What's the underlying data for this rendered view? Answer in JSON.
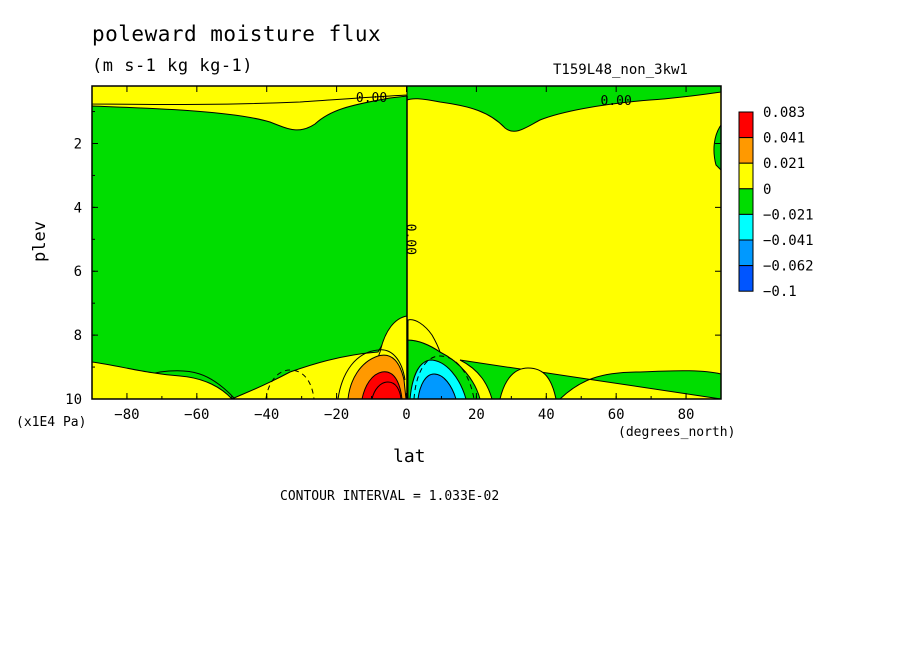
{
  "chart_data": {
    "type": "heatmap",
    "title": "poleward moisture flux",
    "units": "(m s-1 kg kg-1)",
    "run_name": "T159L48_non_3kw1",
    "xlabel": "lat",
    "x_units": "(degrees_north)",
    "ylabel": "plev",
    "y_units": "(x1E4 Pa)",
    "xlim": [
      -90,
      90
    ],
    "ylim": [
      10,
      0.2
    ],
    "x_ticks": [
      -80,
      -60,
      -40,
      -20,
      0,
      20,
      40,
      60,
      80
    ],
    "y_ticks": [
      2,
      4,
      6,
      8,
      10
    ],
    "x_tick_labels": [
      "−80",
      "−60",
      "−40",
      "−20",
      "0",
      "20",
      "40",
      "60",
      "80"
    ],
    "y_tick_labels": [
      "2",
      "4",
      "6",
      "8",
      "10"
    ],
    "contour_interval_text": "CONTOUR INTERVAL = 1.033E-02",
    "contour_labels": [
      {
        "text": "0.00",
        "lat": -10,
        "plev": 0.7
      },
      {
        "text": "0.00",
        "lat": 60,
        "plev": 0.8
      },
      {
        "text": "0.00",
        "lat": 0,
        "plev": 5.0
      }
    ],
    "legend": {
      "position": "right",
      "colors": [
        "#ff0000",
        "#ff9900",
        "#ffff00",
        "#00dd00",
        "#00ffff",
        "#0099ff",
        "#0055ff"
      ],
      "labels": [
        "0.083",
        "0.041",
        "0.021",
        "0",
        "−0.021",
        "−0.041",
        "−0.062",
        "−0.1"
      ]
    },
    "regions": [
      {
        "color": "#ffff00",
        "value_range": "0 to 0.021",
        "description": "northern hemisphere mid/upper troposphere"
      },
      {
        "color": "#00dd00",
        "value_range": "-0.021 to 0",
        "description": "southern hemisphere mid/upper troposphere"
      },
      {
        "color": "#ff0000",
        "value_range": "0.041 to 0.083",
        "lat": -5,
        "plev": 9.7
      },
      {
        "color": "#00ffff",
        "value_range": "-0.041 to -0.021",
        "lat": 7,
        "plev": 9.5
      },
      {
        "color": "#0099ff",
        "value_range": "-0.062 to -0.041",
        "lat": 7,
        "plev": 9.7
      }
    ]
  }
}
